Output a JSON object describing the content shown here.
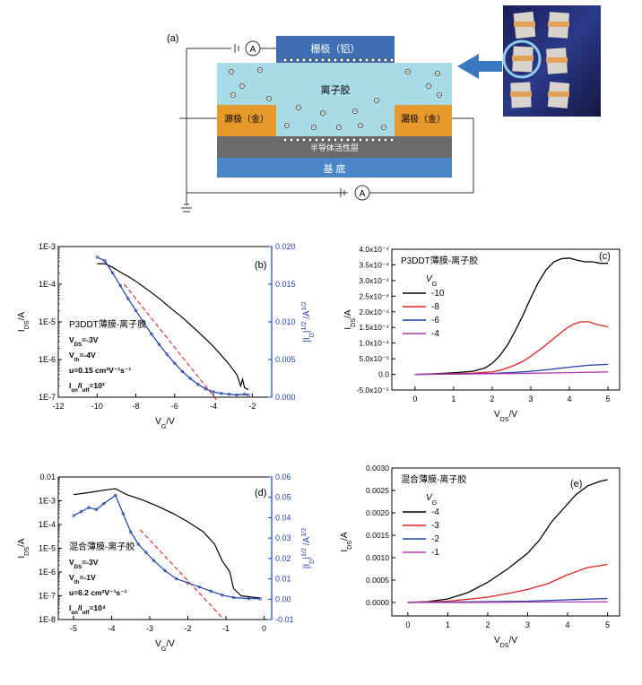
{
  "figure": {
    "panel_labels": {
      "a": "(a)",
      "b": "(b)",
      "c": "(c)",
      "d": "(d)",
      "e": "(e)"
    }
  },
  "schematic": {
    "gate_label": "栅极（铝）",
    "ion_gel_label": "离子胶",
    "source_label": "源极（金）",
    "drain_label": "漏极（金）",
    "semiconductor_label": "半导体活性层",
    "substrate_label": "基 底",
    "ammeter_label": "A",
    "colors": {
      "gate": "#3f6fb2",
      "gel": "#a9dbe6",
      "electrode": "#e79a2b",
      "semiconductor": "#6b6b6b",
      "substrate": "#4a86c6",
      "arrow": "#3b78c2"
    }
  },
  "chart_data": [
    {
      "id": "b",
      "type": "line",
      "xlabel": "V_G/V",
      "ylabel": "I_DS/A",
      "y2label": "|I_D|^1/2 /A^1/2",
      "xlim": [
        -12,
        -1
      ],
      "ylim_log": [
        1e-07,
        0.001
      ],
      "y2lim": [
        0,
        0.02
      ],
      "x_ticks": [
        "-12",
        "-10",
        "-8",
        "-6",
        "-4",
        "-2"
      ],
      "y_ticks": [
        "1E-7",
        "1E-6",
        "1E-5",
        "1E-4",
        "1E-3"
      ],
      "y2_ticks": [
        "0.000",
        "0.005",
        "0.010",
        "0.015",
        "0.020"
      ],
      "annotation_lines": [
        "P3DDT薄膜-离子胶",
        "V_DS=-3V",
        "V_th=-4V",
        "u=0.15 cm²V⁻¹s⁻¹",
        "I_on/I_off=10³"
      ],
      "series": [
        {
          "axis": "log",
          "color": "#000000",
          "points": [
            [
              -10,
              0.00035
            ],
            [
              -9.6,
              0.00035
            ],
            [
              -9.2,
              0.00028
            ],
            [
              -8.8,
              0.00021
            ],
            [
              -8.4,
              0.00016
            ],
            [
              -8,
              0.00012
            ],
            [
              -7.6,
              8.5e-05
            ],
            [
              -7.2,
              6e-05
            ],
            [
              -6.8,
              4.2e-05
            ],
            [
              -6.4,
              2.8e-05
            ],
            [
              -6,
              1.9e-05
            ],
            [
              -5.6,
              1.3e-05
            ],
            [
              -5.2,
              8.5e-06
            ],
            [
              -4.8,
              5.5e-06
            ],
            [
              -4.4,
              3.5e-06
            ],
            [
              -4,
              2.2e-06
            ],
            [
              -3.6,
              1.3e-06
            ],
            [
              -3.2,
              7.5e-07
            ],
            [
              -2.8,
              4e-07
            ],
            [
              -2.6,
              2e-07
            ],
            [
              -2.5,
              3e-07
            ],
            [
              -2.4,
              1.8e-07
            ],
            [
              -2.2,
              1.6e-07
            ]
          ]
        },
        {
          "axis": "sqrt",
          "color": "#1f3fa6",
          "points": [
            [
              -10,
              0.0186
            ],
            [
              -9.6,
              0.0181
            ],
            [
              -9.2,
              0.0165
            ],
            [
              -8.8,
              0.0148
            ],
            [
              -8.4,
              0.0131
            ],
            [
              -8,
              0.0115
            ],
            [
              -7.6,
              0.0099
            ],
            [
              -7.2,
              0.0084
            ],
            [
              -6.8,
              0.007
            ],
            [
              -6.4,
              0.0057
            ],
            [
              -6,
              0.0045
            ],
            [
              -5.6,
              0.0034
            ],
            [
              -5.2,
              0.0025
            ],
            [
              -4.8,
              0.0017
            ],
            [
              -4.4,
              0.0011
            ],
            [
              -4,
              0.0007
            ],
            [
              -3.6,
              0.0005
            ],
            [
              -3.2,
              0.0004
            ],
            [
              -2.8,
              0.0003
            ],
            [
              -2.4,
              0.0004
            ],
            [
              -2.2,
              0.0003
            ]
          ]
        },
        {
          "axis": "log",
          "color": "#e02020",
          "dashed": true,
          "points": [
            [
              -8.6,
              0.0001
            ],
            [
              -3.8,
              8e-08
            ]
          ]
        }
      ]
    },
    {
      "id": "c",
      "type": "line",
      "xlabel": "V_DS/V",
      "ylabel": "I_DS/A",
      "legend_title": "V_G",
      "title": "P3DDT薄膜-离子胶",
      "xlim": [
        -0.6,
        5.3
      ],
      "ylim": [
        -5e-05,
        0.0004
      ],
      "x_ticks": [
        "0",
        "1",
        "2",
        "3",
        "4",
        "5"
      ],
      "y_ticks": [
        "-5.0x10⁻⁵",
        "0.0",
        "5.0x10⁻⁵",
        "1.0x10⁻⁴",
        "1.5x10⁻⁴",
        "2.0x10⁻⁴",
        "2.5x10⁻⁴",
        "3.0x10⁻⁴",
        "3.5x10⁻⁴",
        "4.0x10⁻⁴"
      ],
      "legend_placement": "top-left",
      "series": [
        {
          "name": "-10",
          "color": "#000000",
          "x": [
            0,
            0.5,
            1,
            1.5,
            1.8,
            2,
            2.2,
            2.4,
            2.6,
            2.8,
            3,
            3.2,
            3.4,
            3.6,
            3.8,
            4,
            4.2,
            4.4,
            4.6,
            4.8,
            5
          ],
          "values": [
            0,
            2e-06,
            5e-06,
            1e-05,
            2e-05,
            3.5e-05,
            6e-05,
            9.5e-05,
            0.00014,
            0.00019,
            0.000245,
            0.000295,
            0.000335,
            0.00036,
            0.00037,
            0.000372,
            0.000365,
            0.00036,
            0.00036,
            0.000355,
            0.000355
          ]
        },
        {
          "name": "-8",
          "color": "#e02020",
          "x": [
            0,
            0.5,
            1,
            1.5,
            2,
            2.2,
            2.5,
            2.8,
            3,
            3.3,
            3.6,
            3.9,
            4.1,
            4.3,
            4.5,
            4.7,
            5
          ],
          "values": [
            0,
            1e-06,
            2e-06,
            4e-06,
            8e-06,
            1.3e-05,
            2.5e-05,
            4.2e-05,
            5.8e-05,
            8.5e-05,
            0.000115,
            0.000145,
            0.00016,
            0.000168,
            0.000168,
            0.00016,
            0.000152
          ]
        },
        {
          "name": "-6",
          "color": "#1f3fa6",
          "x": [
            0,
            1,
            2,
            2.5,
            3,
            3.5,
            4,
            4.5,
            5
          ],
          "values": [
            0,
            1e-06,
            3e-06,
            6e-06,
            1e-05,
            1.6e-05,
            2.3e-05,
            2.9e-05,
            3.2e-05
          ]
        },
        {
          "name": "-4",
          "color": "#b03cb0",
          "x": [
            0,
            1,
            2,
            3,
            4,
            5
          ],
          "values": [
            0,
            1e-06,
            2e-06,
            3.5e-06,
            5.5e-06,
            8e-06
          ]
        }
      ]
    },
    {
      "id": "d",
      "type": "line",
      "xlabel": "V_G/V",
      "ylabel": "I_DS/A",
      "y2label": "|I_D|^1/2 /A^1/2",
      "xlim": [
        -5.4,
        0.2
      ],
      "ylim_log": [
        1e-08,
        0.01
      ],
      "y2lim": [
        -0.01,
        0.06
      ],
      "x_ticks": [
        "-5",
        "-4",
        "-3",
        "-2",
        "-1",
        "0"
      ],
      "y_ticks": [
        "1E-8",
        "1E-7",
        "1E-6",
        "1E-5",
        "1E-4",
        "1E-3",
        "0.01"
      ],
      "y2_ticks": [
        "-0.01",
        "0.00",
        "0.01",
        "0.02",
        "0.03",
        "0.04",
        "0.05",
        "0.06"
      ],
      "annotation_lines": [
        "混合薄膜-离子胶",
        "V_DS=-3V",
        "V_th=-1V",
        "u=6.2 cm²V⁻¹s⁻¹",
        "I_on/I_off=10⁴"
      ],
      "series": [
        {
          "axis": "log",
          "color": "#000000",
          "points": [
            [
              -5,
              0.0018
            ],
            [
              -4.6,
              0.0022
            ],
            [
              -4.2,
              0.0028
            ],
            [
              -3.9,
              0.0032
            ],
            [
              -3.6,
              0.0018
            ],
            [
              -3.2,
              0.0011
            ],
            [
              -2.8,
              0.0006
            ],
            [
              -2.4,
              0.0003
            ],
            [
              -2,
              0.00013
            ],
            [
              -1.6,
              5e-05
            ],
            [
              -1.3,
              1.5e-05
            ],
            [
              -1.1,
              3e-06
            ],
            [
              -0.9,
              1e-06
            ],
            [
              -0.8,
              2e-07
            ],
            [
              -0.6,
              1e-07
            ],
            [
              -0.1,
              8e-08
            ]
          ]
        },
        {
          "axis": "sqrt",
          "color": "#1f3fa6",
          "points": [
            [
              -5,
              0.041
            ],
            [
              -4.8,
              0.043
            ],
            [
              -4.6,
              0.045
            ],
            [
              -4.4,
              0.044
            ],
            [
              -4.2,
              0.047
            ],
            [
              -3.9,
              0.051
            ],
            [
              -3.7,
              0.042
            ],
            [
              -3.5,
              0.033
            ],
            [
              -3.3,
              0.027
            ],
            [
              -3.1,
              0.023
            ],
            [
              -2.9,
              0.019
            ],
            [
              -2.6,
              0.014
            ],
            [
              -2.3,
              0.01
            ],
            [
              -2,
              0.008
            ],
            [
              -1.7,
              0.006
            ],
            [
              -1.4,
              0.004
            ],
            [
              -1.1,
              0.002
            ],
            [
              -0.8,
              0.0008
            ],
            [
              -0.4,
              0.0003
            ],
            [
              -0.1,
              0.0002
            ]
          ]
        },
        {
          "axis": "log",
          "color": "#e02020",
          "dashed": true,
          "points": [
            [
              -3.25,
              6e-05
            ],
            [
              -1.05,
              1e-08
            ]
          ]
        }
      ]
    },
    {
      "id": "e",
      "type": "line",
      "xlabel": "V_DS/V",
      "ylabel": "I_DS/A",
      "legend_title": "V_G",
      "title": "混合薄膜-离子胶",
      "xlim": [
        -0.4,
        5.3
      ],
      "ylim": [
        -0.0003,
        0.003
      ],
      "x_ticks": [
        "0",
        "1",
        "2",
        "3",
        "4",
        "5"
      ],
      "y_ticks": [
        "0.0000",
        "0.0005",
        "0.0010",
        "0.0015",
        "0.0020",
        "0.0025",
        "0.0030"
      ],
      "legend_placement": "top-left",
      "series": [
        {
          "name": "-4",
          "color": "#000000",
          "x": [
            0,
            0.5,
            1,
            1.5,
            2,
            2.5,
            3,
            3.3,
            3.6,
            3.9,
            4.2,
            4.5,
            4.8,
            5
          ],
          "values": [
            0,
            2e-05,
            8e-05,
            0.00022,
            0.00045,
            0.00075,
            0.0011,
            0.0014,
            0.0018,
            0.0021,
            0.0024,
            0.0026,
            0.0027,
            0.00274
          ]
        },
        {
          "name": "-3",
          "color": "#e02020",
          "x": [
            0,
            1,
            1.6,
            2,
            2.5,
            3,
            3.5,
            4,
            4.5,
            5
          ],
          "values": [
            0,
            3e-05,
            8e-05,
            0.00012,
            0.0002,
            0.00029,
            0.00042,
            0.00062,
            0.00078,
            0.00085
          ]
        },
        {
          "name": "-2",
          "color": "#1f3fa6",
          "x": [
            0,
            1,
            2,
            3,
            4,
            5
          ],
          "values": [
            0,
            1e-05,
            2e-05,
            3e-05,
            6e-05,
            9e-05
          ]
        },
        {
          "name": "-1",
          "color": "#b03cb0",
          "x": [
            0,
            1,
            2,
            3,
            4,
            5
          ],
          "values": [
            0,
            0,
            5e-06,
            1e-05,
            1.2e-05,
            1.5e-05
          ]
        }
      ]
    }
  ]
}
